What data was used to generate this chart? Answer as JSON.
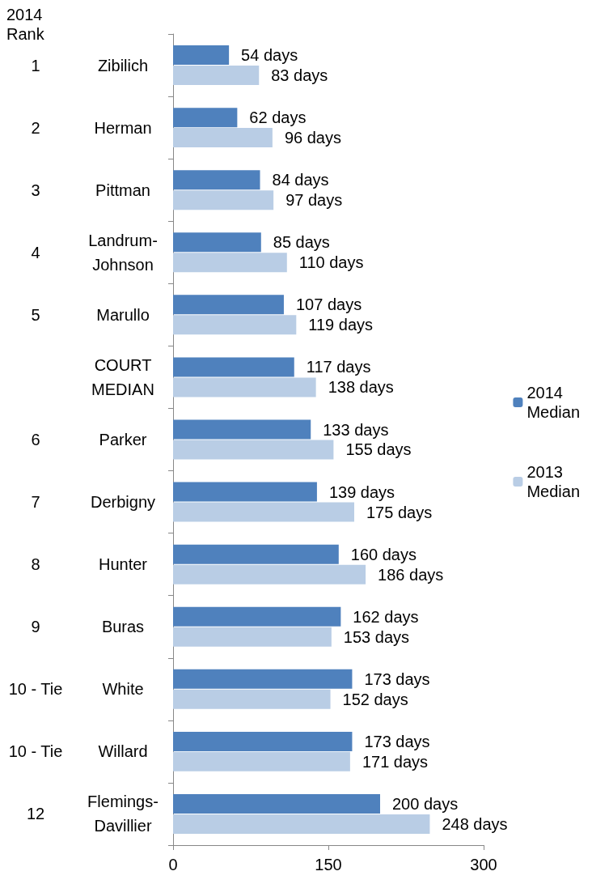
{
  "chart_data": {
    "type": "bar",
    "orientation": "horizontal",
    "categories": [
      "Zibilich",
      "Herman",
      "Pittman",
      "Landrum-Johnson",
      "Marullo",
      "COURT MEDIAN",
      "Parker",
      "Derbigny",
      "Hunter",
      "Buras",
      "White",
      "Willard",
      "Flemings-Davillier"
    ],
    "series": [
      {
        "name": "2014 Median",
        "color": "#4f81bd",
        "values": [
          54,
          62,
          84,
          85,
          107,
          117,
          133,
          139,
          160,
          162,
          173,
          173,
          200
        ],
        "value_labels": [
          "54 days",
          "62 days",
          "84 days",
          "85 days",
          "107 days",
          "117 days",
          "133 days",
          "139 days",
          "160 days",
          "162 days",
          "173 days",
          "173 days",
          "200 days"
        ]
      },
      {
        "name": "2013 Median",
        "color": "#b9cde5",
        "values": [
          83,
          96,
          97,
          110,
          119,
          138,
          155,
          175,
          186,
          153,
          152,
          171,
          248
        ],
        "value_labels": [
          "83 days",
          "96 days",
          "97 days",
          "110 days",
          "119 days",
          "138 days",
          "155 days",
          "175 days",
          "186 days",
          "153 days",
          "152 days",
          "171 days",
          "248 days"
        ]
      }
    ],
    "xlim": [
      0,
      300
    ],
    "xticks": [
      0,
      150,
      300
    ],
    "grid": false,
    "legend": "right",
    "annotations": [
      "2014 Rank",
      "1",
      "2",
      "3",
      "4",
      "5",
      "6",
      "7",
      "8",
      "9",
      "10 - Tie",
      "10 - Tie",
      "12"
    ]
  }
}
